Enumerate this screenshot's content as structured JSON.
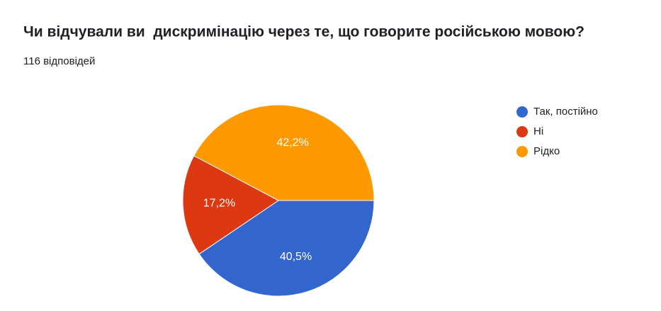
{
  "chart_data": {
    "type": "pie",
    "title": "Чи відчували ви  дискримінацію через те, що говорите російською мовою?",
    "subtitle": "116 відповідей",
    "categories": [
      "Так, постійно",
      "Ні",
      "Рідко"
    ],
    "values": [
      40.5,
      17.2,
      42.2
    ],
    "value_labels": [
      "40,5%",
      "17,2%",
      "42,2%"
    ],
    "colors": [
      "#3366cc",
      "#dc3912",
      "#ff9900"
    ],
    "legend": "right"
  }
}
